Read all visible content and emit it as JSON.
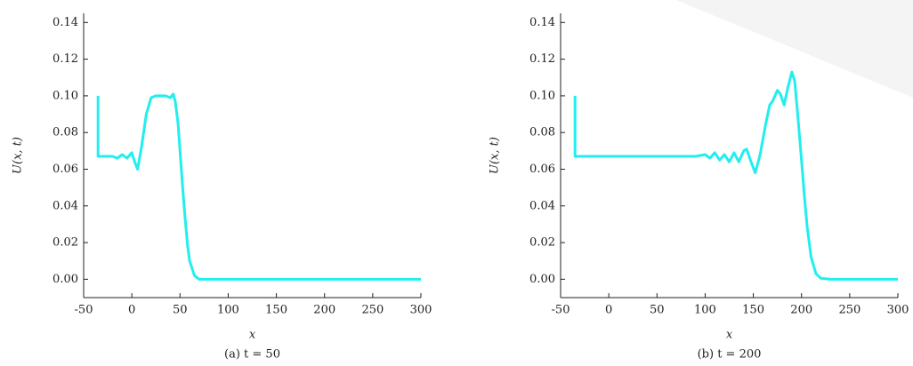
{
  "chart_data": [
    {
      "type": "line",
      "caption": "(a) t = 50",
      "x_label": "x",
      "y_label": "U(x, t)",
      "xlim": [
        -50,
        300
      ],
      "ylim": [
        -0.01,
        0.145
      ],
      "xticks": [
        -50,
        0,
        50,
        100,
        150,
        200,
        250,
        300
      ],
      "yticks": [
        {
          "value": 0,
          "label": "0.00"
        },
        {
          "value": 0.02,
          "label": "0.02"
        },
        {
          "value": 0.04,
          "label": "0.04"
        },
        {
          "value": 0.06,
          "label": "0.06"
        },
        {
          "value": 0.08,
          "label": "0.08"
        },
        {
          "value": 0.1,
          "label": "0.10"
        },
        {
          "value": 0.12,
          "label": "0.12"
        },
        {
          "value": 0.14,
          "label": "0.14"
        }
      ],
      "color": "#22eeee",
      "x": [
        -35,
        -35,
        -30,
        -25,
        -20,
        -15,
        -10,
        -5,
        0,
        3,
        6,
        10,
        15,
        20,
        25,
        30,
        35,
        40,
        43,
        45,
        48,
        50,
        52,
        55,
        58,
        60,
        65,
        70,
        80,
        300
      ],
      "values": [
        0.1,
        0.067,
        0.067,
        0.067,
        0.067,
        0.066,
        0.068,
        0.066,
        0.069,
        0.064,
        0.06,
        0.072,
        0.09,
        0.099,
        0.1,
        0.1,
        0.1,
        0.099,
        0.101,
        0.097,
        0.085,
        0.07,
        0.055,
        0.035,
        0.018,
        0.01,
        0.002,
        0,
        0,
        0
      ]
    },
    {
      "type": "line",
      "caption": "(b) t = 200",
      "x_label": "x",
      "y_label": "U(x, t)",
      "xlim": [
        -50,
        300
      ],
      "ylim": [
        -0.01,
        0.145
      ],
      "xticks": [
        -50,
        0,
        50,
        100,
        150,
        200,
        250,
        300
      ],
      "yticks": [
        {
          "value": 0,
          "label": "0.00"
        },
        {
          "value": 0.02,
          "label": "0.02"
        },
        {
          "value": 0.04,
          "label": "0.04"
        },
        {
          "value": 0.06,
          "label": "0.06"
        },
        {
          "value": 0.08,
          "label": "0.08"
        },
        {
          "value": 0.1,
          "label": "0.10"
        },
        {
          "value": 0.12,
          "label": "0.12"
        },
        {
          "value": 0.14,
          "label": "0.14"
        }
      ],
      "color": "#22eeee",
      "x": [
        -35,
        -35,
        0,
        50,
        90,
        100,
        105,
        110,
        115,
        120,
        125,
        130,
        135,
        140,
        143,
        147,
        152,
        157,
        163,
        167,
        170,
        175,
        178,
        182,
        186,
        190,
        193,
        196,
        200,
        203,
        206,
        210,
        215,
        220,
        230,
        300
      ],
      "values": [
        0.1,
        0.067,
        0.067,
        0.067,
        0.067,
        0.068,
        0.066,
        0.069,
        0.065,
        0.068,
        0.064,
        0.069,
        0.064,
        0.07,
        0.071,
        0.065,
        0.058,
        0.068,
        0.085,
        0.095,
        0.097,
        0.103,
        0.101,
        0.095,
        0.105,
        0.113,
        0.108,
        0.09,
        0.065,
        0.045,
        0.028,
        0.012,
        0.003,
        0.0005,
        0,
        0
      ]
    }
  ]
}
